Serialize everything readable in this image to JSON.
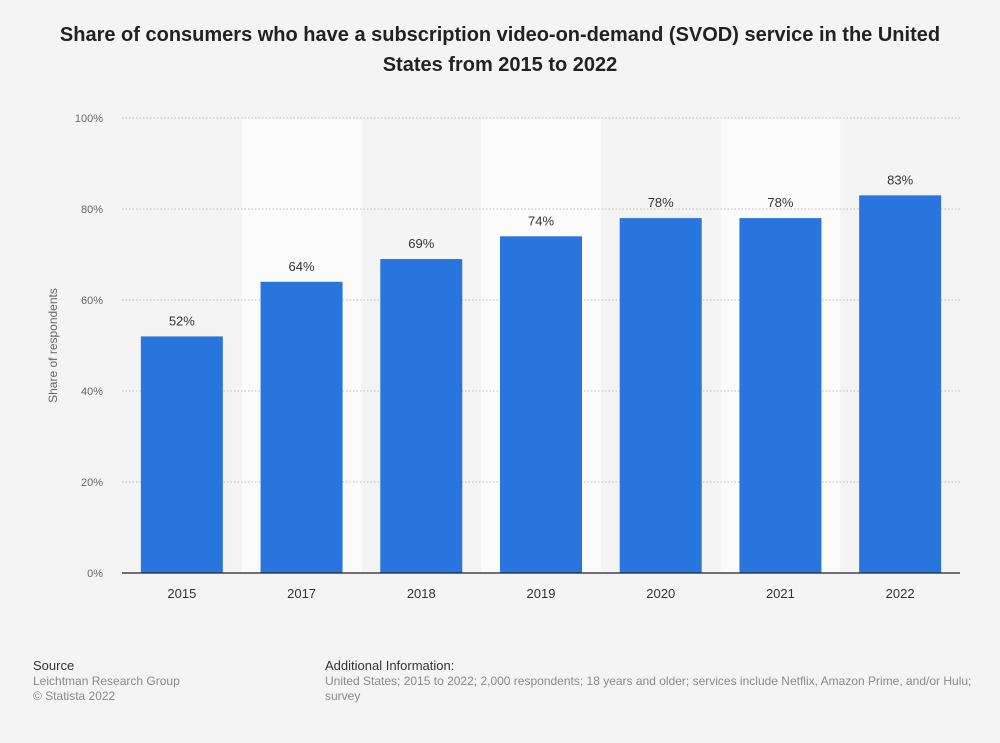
{
  "title": "Share of consumers who have a subscription video-on-demand (SVOD) service in the United States from 2015 to 2022",
  "chart_data": {
    "type": "bar",
    "categories": [
      "2015",
      "2017",
      "2018",
      "2019",
      "2020",
      "2021",
      "2022"
    ],
    "values": [
      52,
      64,
      69,
      74,
      78,
      78,
      83
    ],
    "value_labels": [
      "52%",
      "64%",
      "69%",
      "74%",
      "78%",
      "78%",
      "83%"
    ],
    "ylabel": "Share of respondents",
    "xlabel": "",
    "ylim": [
      0,
      100
    ],
    "yticks": [
      0,
      20,
      40,
      60,
      80,
      100
    ],
    "ytick_labels": [
      "0%",
      "20%",
      "40%",
      "60%",
      "80%",
      "100%"
    ],
    "grid": true,
    "bar_color": "#2876dd",
    "band_color": "#fbfbfb"
  },
  "footer": {
    "source_heading": "Source",
    "source_lines": [
      "Leichtman Research Group",
      "© Statista 2022"
    ],
    "info_heading": "Additional Information:",
    "info_text": "United States; 2015 to 2022; 2,000 respondents; 18 years and older; services include Netflix, Amazon Prime, and/or Hulu; survey"
  }
}
